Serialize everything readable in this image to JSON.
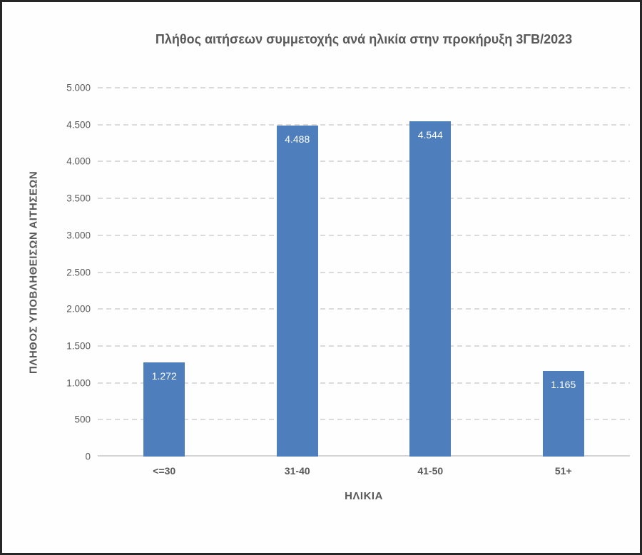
{
  "chart_data": {
    "type": "bar",
    "title": "Πλήθος αιτήσεων συμμετοχής ανά ηλικία στην προκήρυξη 3ΓΒ/2023",
    "xlabel": "ΗΛΙΚΙΑ",
    "ylabel": "ΠΛΗΘΟΣ ΥΠΟΒΛΗΘΕΙΣΩΝ ΑΙΤΗΣΕΩΝ",
    "categories": [
      "<=30",
      "31-40",
      "41-50",
      "51+"
    ],
    "values": [
      1272,
      4488,
      4544,
      1165
    ],
    "value_labels": [
      "1.272",
      "4.488",
      "4.544",
      "1.165"
    ],
    "ylim": [
      0,
      5000
    ],
    "ytick_step": 500,
    "ytick_labels": [
      "0",
      "500",
      "1.000",
      "1.500",
      "2.000",
      "2.500",
      "3.000",
      "3.500",
      "4.000",
      "4.500",
      "5.000"
    ],
    "grid": "horizontal-dashed",
    "legend": "none",
    "colors": {
      "bar": "#4e7ebb",
      "value_label": "#ffffff",
      "text": "#595959",
      "gridline": "#dbdbdb",
      "frame_border": "#262626"
    }
  }
}
